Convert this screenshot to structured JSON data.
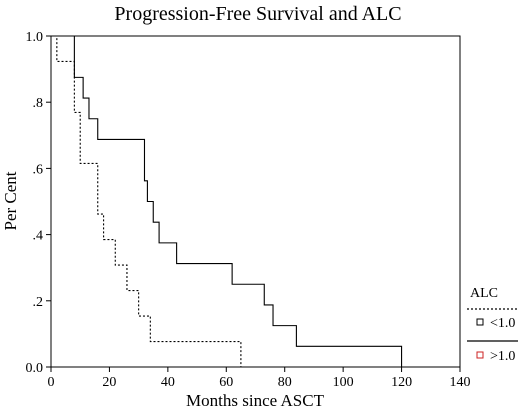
{
  "chart_data": {
    "type": "line",
    "title": "Progression-Free Survival and ALC",
    "xlabel": "Months since ASCT",
    "ylabel": "Per Cent",
    "xlim": [
      0,
      140
    ],
    "ylim": [
      0,
      1.0
    ],
    "x_ticks": [
      "0",
      "20",
      "40",
      "60",
      "80",
      "100",
      "120",
      "140"
    ],
    "y_ticks": [
      "0.0",
      ".2",
      ".4",
      ".6",
      ".8",
      "1.0"
    ],
    "grid": false,
    "legend_title": "ALC",
    "legend_placement": "right",
    "series": [
      {
        "name": "<1.0",
        "line_style": "dotted",
        "marker_color": "#000000",
        "x": [
          0,
          2,
          8,
          10,
          12,
          16,
          18,
          22,
          26,
          30,
          34,
          42,
          65
        ],
        "y": [
          1.0,
          0.923,
          0.769,
          0.615,
          0.615,
          0.462,
          0.385,
          0.308,
          0.231,
          0.154,
          0.077,
          0.077,
          0.0
        ]
      },
      {
        "name": ">1.0",
        "line_style": "solid",
        "marker_color": "#cc2222",
        "x": [
          0,
          8,
          11,
          13,
          16,
          32,
          33,
          35,
          37,
          40,
          43,
          62,
          73,
          76,
          84,
          120
        ],
        "y": [
          1.0,
          0.875,
          0.8125,
          0.75,
          0.6875,
          0.5625,
          0.5,
          0.4375,
          0.375,
          0.375,
          0.3125,
          0.25,
          0.1875,
          0.125,
          0.0625,
          0.0
        ]
      }
    ]
  }
}
